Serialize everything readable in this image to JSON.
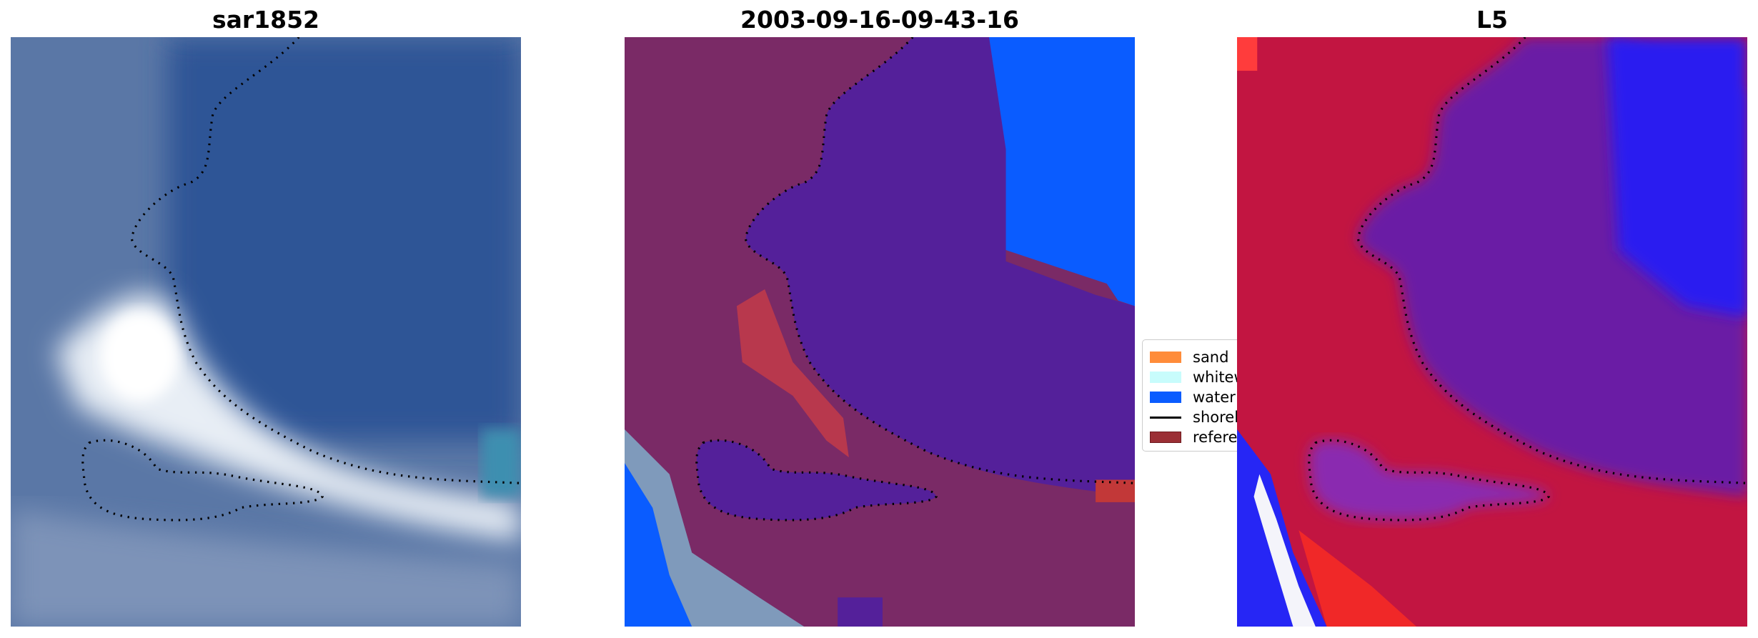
{
  "panels": [
    {
      "title": "sar1852"
    },
    {
      "title": "2003-09-16-09-43-16"
    },
    {
      "title": "L5"
    }
  ],
  "legend": {
    "placement": "center (between panels 2 and 3, partly hidden)",
    "items": [
      {
        "label": "sand",
        "color": "#ff8c3a",
        "kind": "patch"
      },
      {
        "label": "whitew",
        "color": "#c8fcfc",
        "kind": "patch"
      },
      {
        "label": "water",
        "color": "#0a5cff",
        "kind": "patch"
      },
      {
        "label": "shorel",
        "color": "#000000",
        "kind": "line"
      },
      {
        "label": "referer",
        "color": "#9b2f35",
        "kind": "patch"
      }
    ]
  }
}
